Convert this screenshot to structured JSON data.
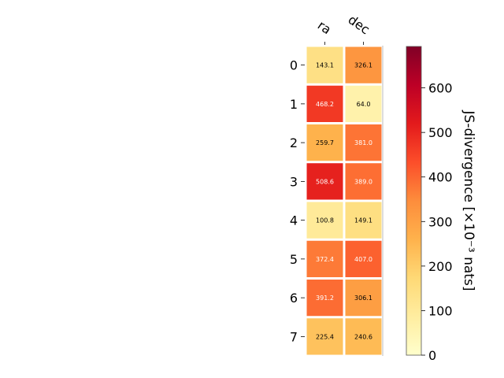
{
  "chart_data": {
    "type": "heatmap",
    "columns": [
      "ra",
      "dec"
    ],
    "rows": [
      "0",
      "1",
      "2",
      "3",
      "4",
      "5",
      "6",
      "7"
    ],
    "values": [
      [
        143.1,
        326.1
      ],
      [
        468.2,
        64.0
      ],
      [
        259.7,
        381.0
      ],
      [
        508.6,
        389.0
      ],
      [
        100.8,
        149.1
      ],
      [
        372.4,
        407.0
      ],
      [
        391.2,
        306.1
      ],
      [
        225.4,
        240.6
      ]
    ],
    "value_labels": [
      [
        "143.1",
        "326.1"
      ],
      [
        "468.2",
        "64.0"
      ],
      [
        "259.7",
        "381.0"
      ],
      [
        "508.6",
        "389.0"
      ],
      [
        "100.8",
        "149.1"
      ],
      [
        "372.4",
        "407.0"
      ],
      [
        "391.2",
        "306.1"
      ],
      [
        "225.4",
        "240.6"
      ]
    ],
    "colorbar": {
      "label": "JS-divergence [×10⁻³ nats]",
      "vmin": 0,
      "vmax": 693,
      "ticks": [
        0,
        100,
        200,
        300,
        400,
        500,
        600
      ],
      "tick_labels": [
        "0",
        "100",
        "200",
        "300",
        "400",
        "500",
        "600"
      ],
      "colormap": "YlOrRd"
    },
    "colormap_stops": [
      "#ffffcc",
      "#ffeda0",
      "#fed976",
      "#feb24c",
      "#fd8d3c",
      "#fc4e2a",
      "#e31a1c",
      "#bd0026",
      "#800026"
    ],
    "title": "",
    "xlabel": "",
    "ylabel": "",
    "grid": false
  }
}
